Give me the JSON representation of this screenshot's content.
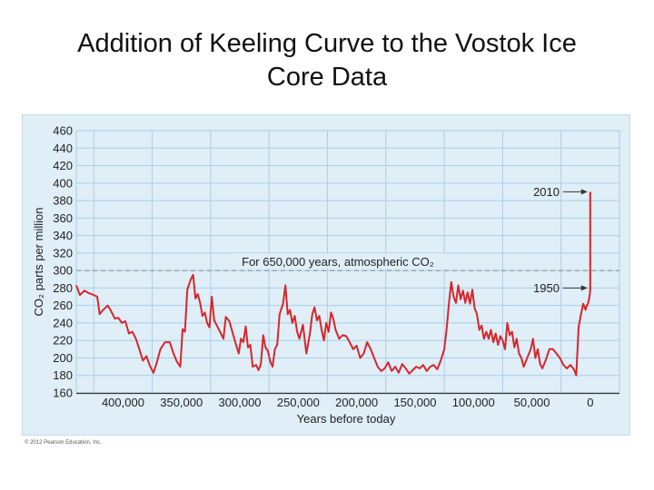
{
  "slide": {
    "title_line1": "Addition of Keeling Curve to the Vostok Ice",
    "title_line2": "Core Data",
    "copyright": "© 2012 Pearson Education, Inc."
  },
  "chart_data": {
    "type": "line",
    "xlabel": "Years before today",
    "ylabel": "CO₂ parts per million",
    "xlim": [
      440000,
      -25000
    ],
    "ylim": [
      160,
      460
    ],
    "x_ticks": [
      400000,
      350000,
      300000,
      250000,
      200000,
      150000,
      100000,
      50000,
      0
    ],
    "x_tick_labels": [
      "400,000",
      "350,000",
      "300,000",
      "250,000",
      "200,000",
      "150,000",
      "100,000",
      "50,000",
      "0"
    ],
    "y_ticks": [
      160,
      180,
      200,
      220,
      240,
      260,
      280,
      300,
      320,
      340,
      360,
      380,
      400,
      420,
      440,
      460
    ],
    "grid": true,
    "reference_line": {
      "value": 300,
      "label": "For 650,000 years, atmospheric CO₂"
    },
    "annotations": [
      {
        "label": "2010",
        "x": 0,
        "y": 390
      },
      {
        "label": "1950",
        "x": 0,
        "y": 280
      }
    ],
    "colors": {
      "line": "#d7262b",
      "panel": "#dfeef7",
      "grid": "#a9cfe8",
      "reference": "#888888"
    },
    "series": [
      {
        "points": [
          [
            440000,
            283
          ],
          [
            437000,
            272
          ],
          [
            433000,
            277
          ],
          [
            429000,
            274
          ],
          [
            425000,
            272
          ],
          [
            422000,
            270
          ],
          [
            420000,
            250
          ],
          [
            417000,
            255
          ],
          [
            413000,
            260
          ],
          [
            410000,
            253
          ],
          [
            407000,
            245
          ],
          [
            404000,
            246
          ],
          [
            401000,
            240
          ],
          [
            398000,
            242
          ],
          [
            395000,
            228
          ],
          [
            392000,
            230
          ],
          [
            389000,
            222
          ],
          [
            386000,
            210
          ],
          [
            383000,
            197
          ],
          [
            380000,
            202
          ],
          [
            377000,
            191
          ],
          [
            374000,
            183
          ],
          [
            371000,
            195
          ],
          [
            368000,
            210
          ],
          [
            364000,
            218
          ],
          [
            360000,
            218
          ],
          [
            357000,
            206
          ],
          [
            354000,
            196
          ],
          [
            351000,
            190
          ],
          [
            349000,
            233
          ],
          [
            347000,
            230
          ],
          [
            345000,
            278
          ],
          [
            342000,
            290
          ],
          [
            340000,
            295
          ],
          [
            338000,
            268
          ],
          [
            336000,
            273
          ],
          [
            334000,
            263
          ],
          [
            332000,
            248
          ],
          [
            330000,
            252
          ],
          [
            328000,
            240
          ],
          [
            326000,
            235
          ],
          [
            324000,
            270
          ],
          [
            322000,
            243
          ],
          [
            320000,
            238
          ],
          [
            317000,
            230
          ],
          [
            314000,
            222
          ],
          [
            312000,
            247
          ],
          [
            309000,
            242
          ],
          [
            306000,
            228
          ],
          [
            303000,
            214
          ],
          [
            301000,
            205
          ],
          [
            299000,
            222
          ],
          [
            297000,
            218
          ],
          [
            295000,
            236
          ],
          [
            293000,
            212
          ],
          [
            291000,
            215
          ],
          [
            289000,
            190
          ],
          [
            286000,
            192
          ],
          [
            284000,
            186
          ],
          [
            282000,
            193
          ],
          [
            280000,
            226
          ],
          [
            278000,
            212
          ],
          [
            276000,
            208
          ],
          [
            274000,
            196
          ],
          [
            272000,
            190
          ],
          [
            270000,
            210
          ],
          [
            268000,
            215
          ],
          [
            266000,
            250
          ],
          [
            263000,
            262
          ],
          [
            261000,
            283
          ],
          [
            259000,
            250
          ],
          [
            257000,
            255
          ],
          [
            255000,
            240
          ],
          [
            253000,
            248
          ],
          [
            251000,
            230
          ],
          [
            249000,
            222
          ],
          [
            246000,
            238
          ],
          [
            243000,
            205
          ],
          [
            240000,
            228
          ],
          [
            238000,
            250
          ],
          [
            236000,
            258
          ],
          [
            234000,
            243
          ],
          [
            232000,
            248
          ],
          [
            230000,
            232
          ],
          [
            228000,
            220
          ],
          [
            226000,
            240
          ],
          [
            224000,
            230
          ],
          [
            222000,
            252
          ],
          [
            220000,
            245
          ],
          [
            218000,
            232
          ],
          [
            215000,
            222
          ],
          [
            212000,
            226
          ],
          [
            209000,
            225
          ],
          [
            206000,
            218
          ],
          [
            203000,
            210
          ],
          [
            200000,
            214
          ],
          [
            197000,
            200
          ],
          [
            194000,
            205
          ],
          [
            191000,
            218
          ],
          [
            188000,
            210
          ],
          [
            185000,
            200
          ],
          [
            182000,
            190
          ],
          [
            179000,
            185
          ],
          [
            176000,
            188
          ],
          [
            173000,
            195
          ],
          [
            170000,
            185
          ],
          [
            167000,
            190
          ],
          [
            164000,
            183
          ],
          [
            161000,
            193
          ],
          [
            158000,
            188
          ],
          [
            155000,
            182
          ],
          [
            152000,
            186
          ],
          [
            149000,
            190
          ],
          [
            146000,
            188
          ],
          [
            143000,
            192
          ],
          [
            140000,
            185
          ],
          [
            137000,
            190
          ],
          [
            134000,
            192
          ],
          [
            131000,
            187
          ],
          [
            128000,
            197
          ],
          [
            125000,
            210
          ],
          [
            123000,
            233
          ],
          [
            121000,
            262
          ],
          [
            119000,
            287
          ],
          [
            117000,
            270
          ],
          [
            115000,
            263
          ],
          [
            113000,
            283
          ],
          [
            111000,
            267
          ],
          [
            109000,
            277
          ],
          [
            107000,
            263
          ],
          [
            105000,
            275
          ],
          [
            103000,
            262
          ],
          [
            101000,
            278
          ],
          [
            99000,
            257
          ],
          [
            97000,
            250
          ],
          [
            95000,
            232
          ],
          [
            93000,
            237
          ],
          [
            91000,
            222
          ],
          [
            89000,
            230
          ],
          [
            87000,
            222
          ],
          [
            85000,
            232
          ],
          [
            83000,
            218
          ],
          [
            81000,
            228
          ],
          [
            79000,
            215
          ],
          [
            77000,
            225
          ],
          [
            75000,
            220
          ],
          [
            73000,
            210
          ],
          [
            71000,
            240
          ],
          [
            69000,
            226
          ],
          [
            67000,
            230
          ],
          [
            65000,
            212
          ],
          [
            63000,
            222
          ],
          [
            61000,
            205
          ],
          [
            59000,
            200
          ],
          [
            57000,
            190
          ],
          [
            54000,
            200
          ],
          [
            51000,
            210
          ],
          [
            49000,
            222
          ],
          [
            47000,
            200
          ],
          [
            45000,
            210
          ],
          [
            43000,
            193
          ],
          [
            41000,
            188
          ],
          [
            38000,
            198
          ],
          [
            35000,
            210
          ],
          [
            32000,
            210
          ],
          [
            29000,
            205
          ],
          [
            26000,
            200
          ],
          [
            23000,
            192
          ],
          [
            20000,
            188
          ],
          [
            17000,
            192
          ],
          [
            14000,
            187
          ],
          [
            12000,
            180
          ],
          [
            10000,
            235
          ],
          [
            8000,
            250
          ],
          [
            6000,
            262
          ],
          [
            4000,
            255
          ],
          [
            3000,
            260
          ],
          [
            2000,
            262
          ],
          [
            1000,
            268
          ],
          [
            200,
            275
          ],
          [
            100,
            278
          ],
          [
            60,
            280
          ],
          [
            40,
            300
          ],
          [
            20,
            345
          ],
          [
            0,
            390
          ]
        ]
      }
    ]
  }
}
